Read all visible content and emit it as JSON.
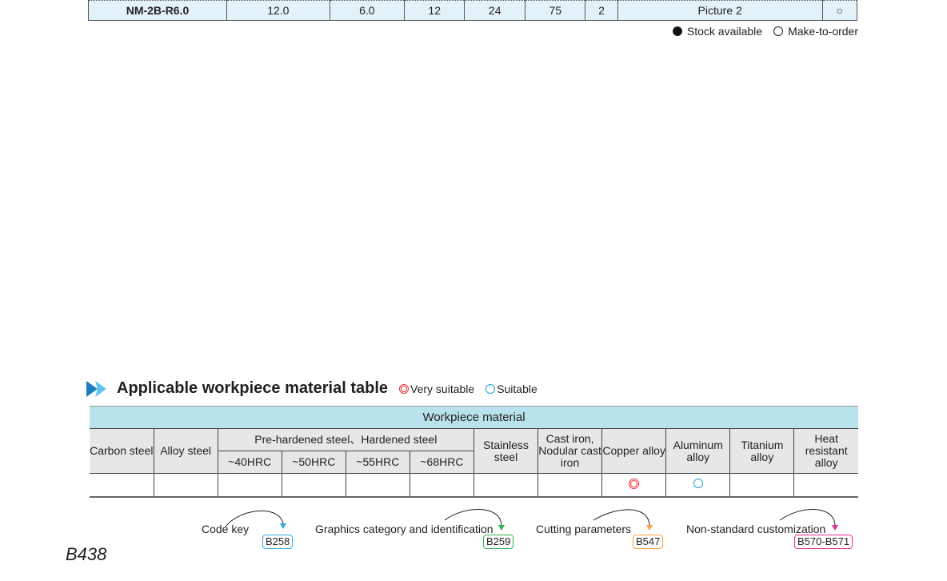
{
  "spec_row": [
    "NM-2B-R6.0",
    "12.0",
    "6.0",
    "12",
    "24",
    "75",
    "2",
    "Picture 2",
    "○"
  ],
  "stock_legend": {
    "available": "Stock available",
    "make_to_order": "Make-to-order"
  },
  "material_section": {
    "title": "Applicable workpiece material table",
    "key_very": "Very suitable",
    "key_suitable": "Suitable",
    "band": "Workpiece material",
    "columns": {
      "carbon": "Carbon steel",
      "alloy": "Alloy steel",
      "hardened": "Pre-hardened steel、Hardened steel",
      "h40": "~40HRC",
      "h50": "~50HRC",
      "h55": "~55HRC",
      "h68": "~68HRC",
      "stainless": "Stainless steel",
      "cast": "Cast iron, Nodular cast iron",
      "copper": "Copper alloy",
      "aluminum": "Aluminum alloy",
      "titanium": "Titanium alloy",
      "heat": "Heat resistant alloy"
    },
    "ratings": {
      "copper": "very-suitable",
      "aluminum": "suitable"
    },
    "colors": {
      "very": "#e8303a",
      "suitable": "#1a9fd9",
      "band": "#b9e3ec"
    }
  },
  "refs": [
    {
      "label": "Code key",
      "page": "B258",
      "color": "#29abe2"
    },
    {
      "label": "Graphics category and identification",
      "page": "B259",
      "color": "#2bb34a"
    },
    {
      "label": "Cutting parameters",
      "page": "B547",
      "color": "#f7a233"
    },
    {
      "label": "Non-standard customization",
      "page": "B570-B571",
      "color": "#ec2b8c"
    }
  ],
  "page_number": "B438"
}
